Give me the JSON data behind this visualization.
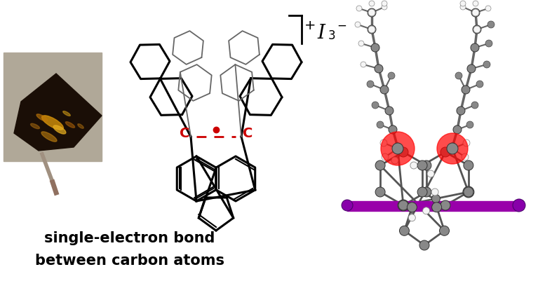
{
  "background_color": "#ffffff",
  "text_line1": "single-electron bond",
  "text_line2": "between carbon atoms",
  "text_fontsize": 15,
  "text_fontweight": "bold",
  "text_color": "#000000",
  "C_label": "C",
  "C_color": "#cc0000",
  "dot_color": "#cc0000",
  "dashes_color": "#cc0000",
  "red_spot_color": "#ff0000",
  "purple_bar_color": "#9900aa",
  "figsize": [
    7.77,
    4.01
  ],
  "dpi": 100,
  "photo_bg": "#b0a898",
  "crystal_dark": "#1a0e06",
  "crystal_gold": "#c8900a",
  "mol3d_gray": "#888888",
  "mol3d_dark": "#404040",
  "mol3d_white": "#f5f5f5",
  "iodine_purple": "#8800aa"
}
